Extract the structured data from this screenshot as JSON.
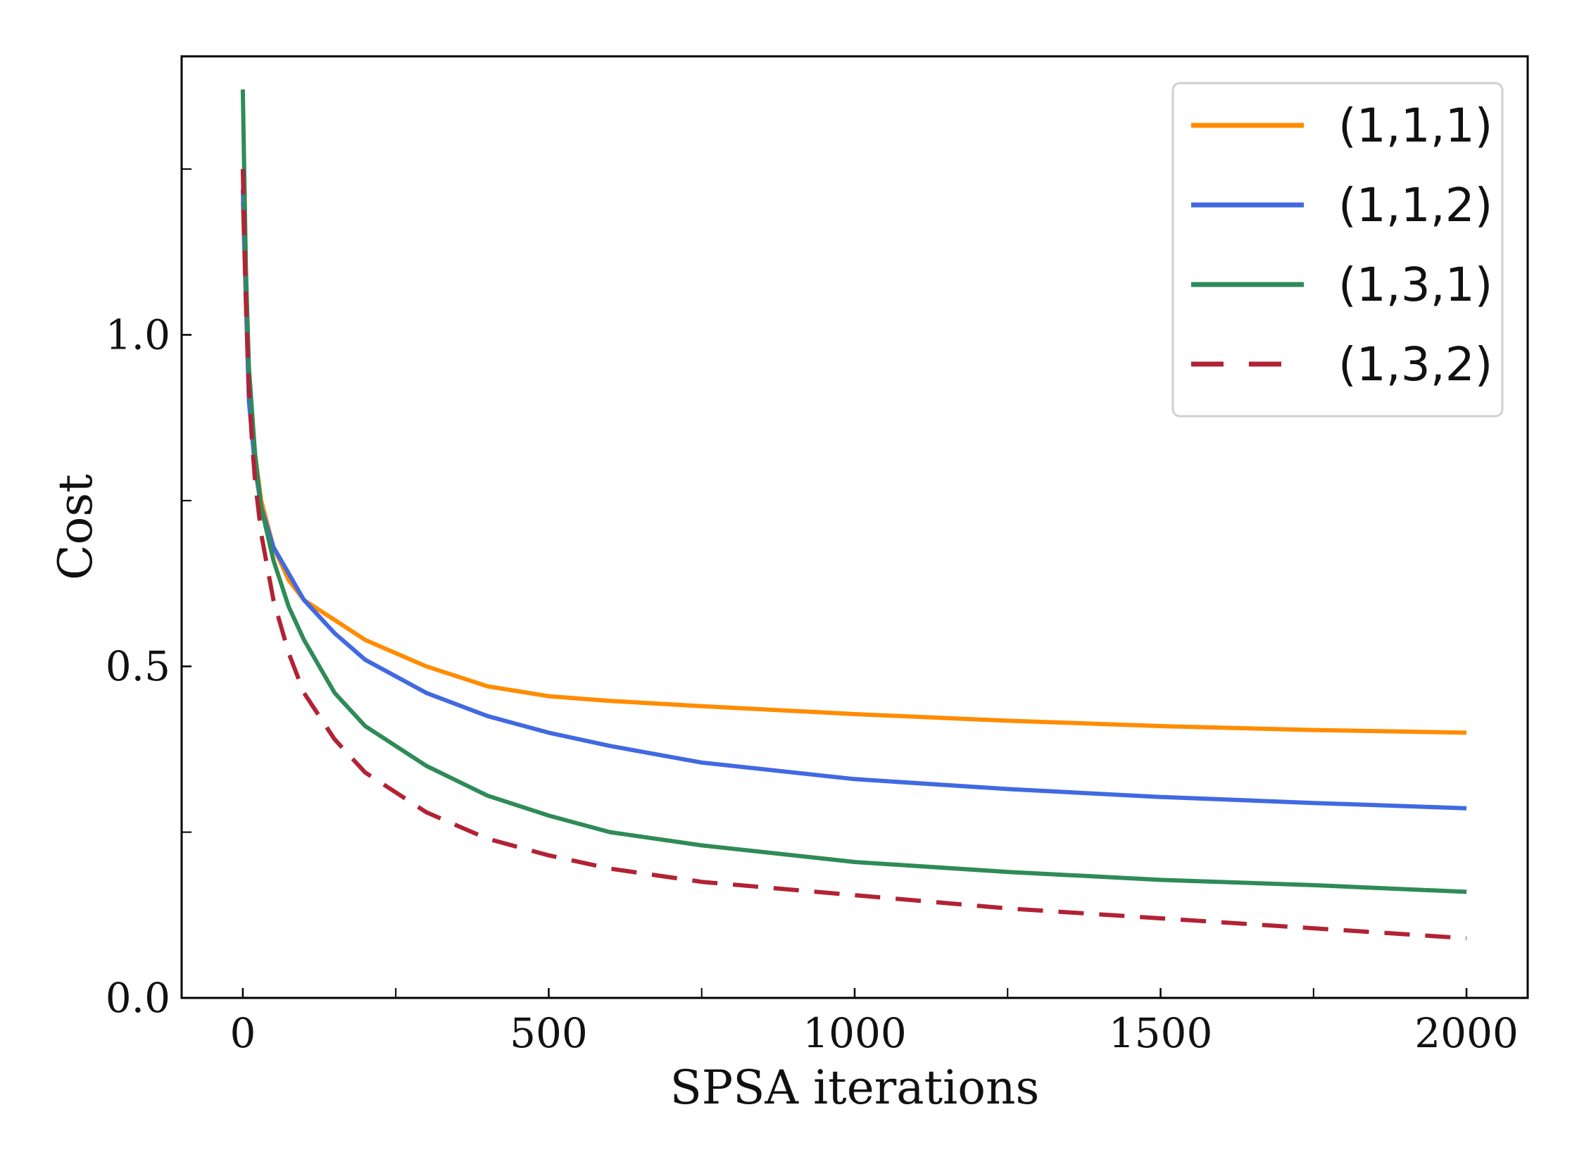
{
  "chart_data": {
    "type": "line",
    "title": "",
    "xlabel": "SPSA iterations",
    "ylabel": "Cost",
    "xlim": [
      -100,
      2100
    ],
    "ylim": [
      0.0,
      1.42
    ],
    "x_major_ticks": [
      0,
      500,
      1000,
      1500,
      2000
    ],
    "x_tick_labels": [
      "0",
      "500",
      "1000",
      "1500",
      "2000"
    ],
    "x_minor_ticks": [
      250,
      750,
      1250,
      1750
    ],
    "y_major_ticks": [
      0.0,
      0.5,
      1.0
    ],
    "y_tick_labels": [
      "0.0",
      "0.5",
      "1.0"
    ],
    "y_minor_ticks": [
      0.25,
      0.75,
      1.25
    ],
    "grid": false,
    "legend_position": "top-right",
    "series": [
      {
        "name": "(1,1,1)",
        "color": "#ff8c00",
        "style": "solid",
        "x": [
          0,
          10,
          20,
          30,
          50,
          75,
          100,
          150,
          200,
          300,
          400,
          500,
          600,
          750,
          1000,
          1250,
          1500,
          1750,
          2000
        ],
        "y": [
          1.2,
          0.9,
          0.82,
          0.75,
          0.68,
          0.63,
          0.6,
          0.57,
          0.54,
          0.5,
          0.47,
          0.455,
          0.448,
          0.44,
          0.428,
          0.418,
          0.41,
          0.404,
          0.4
        ]
      },
      {
        "name": "(1,1,2)",
        "color": "#4169e1",
        "style": "solid",
        "x": [
          0,
          10,
          20,
          30,
          50,
          75,
          100,
          150,
          200,
          300,
          400,
          500,
          600,
          750,
          1000,
          1250,
          1500,
          1750,
          2000
        ],
        "y": [
          1.22,
          0.9,
          0.8,
          0.74,
          0.68,
          0.64,
          0.6,
          0.55,
          0.51,
          0.46,
          0.425,
          0.4,
          0.38,
          0.355,
          0.33,
          0.315,
          0.303,
          0.294,
          0.286
        ]
      },
      {
        "name": "(1,3,1)",
        "color": "#2e8b57",
        "style": "solid",
        "x": [
          0,
          5,
          10,
          20,
          30,
          50,
          75,
          100,
          150,
          200,
          300,
          400,
          500,
          600,
          750,
          1000,
          1250,
          1500,
          1750,
          2000
        ],
        "y": [
          1.37,
          1.1,
          0.95,
          0.82,
          0.74,
          0.66,
          0.59,
          0.54,
          0.46,
          0.41,
          0.35,
          0.305,
          0.275,
          0.25,
          0.23,
          0.205,
          0.19,
          0.178,
          0.17,
          0.16
        ]
      },
      {
        "name": "(1,3,2)",
        "color": "#b22234",
        "style": "dashed",
        "x": [
          0,
          5,
          10,
          15,
          20,
          30,
          50,
          75,
          100,
          150,
          200,
          300,
          400,
          500,
          600,
          750,
          1000,
          1250,
          1500,
          1750,
          2000
        ],
        "y": [
          1.25,
          1.05,
          0.92,
          0.84,
          0.78,
          0.7,
          0.6,
          0.52,
          0.46,
          0.39,
          0.34,
          0.28,
          0.24,
          0.215,
          0.195,
          0.175,
          0.155,
          0.135,
          0.12,
          0.105,
          0.09
        ]
      }
    ]
  }
}
